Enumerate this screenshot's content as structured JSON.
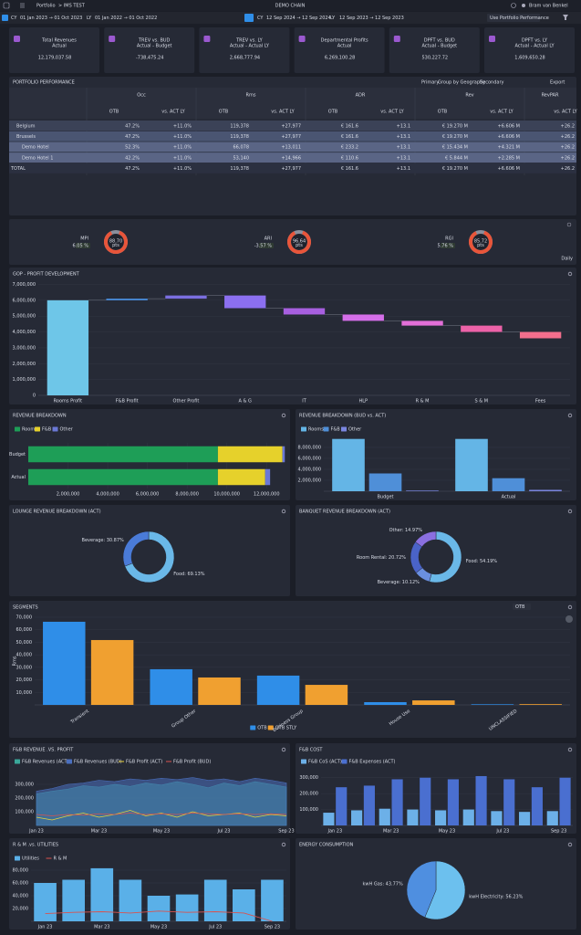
{
  "header": {
    "section": "Portfolio",
    "crumb": "> IMS TEST",
    "org": "DEMO CHAIN",
    "user": "Bram van Benkel"
  },
  "date_bar": {
    "cy": "CY",
    "cy_range": "01 Jan 2023 → 01 Oct 2023",
    "ly": "LY",
    "ly_range": "01 Jan 2022 → 01 Oct 2022",
    "cy2": "CY",
    "cy2_range": "12 Sep 2024 → 12 Sep 2024",
    "ly2": "LY",
    "ly2_range": "12 Sep 2023 → 12 Sep 2023",
    "option": "Use Portfolio Performance"
  },
  "kpis": [
    {
      "title": "Total Revenues",
      "subtitle": "Actual",
      "value": "12,179,037.58",
      "color": "#ffffff"
    },
    {
      "title": "TREV vs. BUD",
      "subtitle": "Actual - Budget",
      "value": "-738,475.24",
      "color": "#ff5a5a"
    },
    {
      "title": "TREV vs. LY",
      "subtitle": "Actual - Actual LY",
      "value": "2,668,777.94",
      "color": "#7ddc5a"
    },
    {
      "title": "Departmental Profits",
      "subtitle": "Actual",
      "value": "6,269,100.28",
      "color": "#ffffff"
    },
    {
      "title": "DPFT vs. BUD",
      "subtitle": "Actual - Budget",
      "value": "530,227.72",
      "color": "#7ddc5a"
    },
    {
      "title": "DPFT vs. LY",
      "subtitle": "Actual - Actual LY",
      "value": "1,609,650.28",
      "color": "#7ddc5a"
    }
  ],
  "table": {
    "title": "PORTFOLIO PERFORMANCE",
    "controls": [
      "Primary",
      "Group by Geography",
      "Secondary",
      "Export"
    ],
    "groups": [
      "Occ",
      "Rms",
      "ADR",
      "Rev",
      "RevPAR"
    ],
    "subheaders": [
      "OTB",
      "vs. ACT LY"
    ],
    "rows": [
      [
        "Belgium",
        "47.2%",
        "+11.0%",
        "119,378",
        "+27,977",
        "€ 161.6",
        "+13.1",
        "€ 19.270 M",
        "+6.606 M",
        "+26.2"
      ],
      [
        "Brussels",
        "47.2%",
        "+11.0%",
        "119,378",
        "+27,977",
        "€ 161.6",
        "+13.1",
        "€ 19.270 M",
        "+6.606 M",
        "+26.2"
      ],
      [
        "Demo Hotel",
        "52.3%",
        "+11.0%",
        "66,078",
        "+13,011",
        "€ 233.2",
        "+13.1",
        "€ 15.434 M",
        "+4.321 M",
        "+26.2"
      ],
      [
        "Demo Hotel 1",
        "42.2%",
        "+11.0%",
        "53,140",
        "+14,966",
        "€ 110.6",
        "+13.1",
        "€ 5.844 M",
        "+2.285 M",
        "+26.2"
      ],
      [
        "TOTAL",
        "47.2%",
        "+11.0%",
        "119,378",
        "+27,977",
        "€ 161.6",
        "+13.1",
        "€ 19.270 M",
        "+6.606 M",
        "+26.2"
      ]
    ]
  },
  "gauges": {
    "period": "Daily",
    "items": [
      {
        "label": "MPI",
        "value": "88.70",
        "unit": "pts",
        "change": "6.05 %"
      },
      {
        "label": "ARI",
        "value": "96.64",
        "unit": "pts",
        "change": "-3.57 %"
      },
      {
        "label": "RGI",
        "value": "85.72",
        "unit": "pts",
        "change": "5.76 %"
      }
    ]
  },
  "chart_data": [
    {
      "type": "waterfall",
      "title": "GOP - PROFIT DEVELOPMENT",
      "categories": [
        "Rooms Profit",
        "F&B Profit",
        "Other Profit",
        "A & G",
        "IT",
        "HLP",
        "R & M",
        "S & M",
        "Fees"
      ],
      "values": [
        6000000,
        100000,
        200000,
        -800000,
        -400000,
        -400000,
        -300000,
        -400000,
        -400000
      ],
      "colors": [
        "#6ec6e8",
        "#4a90e2",
        "#7b6fe0",
        "#8b6ff0",
        "#a75fe0",
        "#d46ee8",
        "#e26fd8",
        "#ec62a8",
        "#f26e8c"
      ],
      "ylim": [
        0,
        7200000
      ],
      "yticks": [
        0,
        {
          "value": 1000000,
          "label": "1,000,000"
        },
        {
          "value": 2000000,
          "label": "2,000,000"
        },
        {
          "value": 3000000,
          "label": "3,000,000"
        },
        {
          "value": 4000000,
          "label": "4,000,000"
        },
        {
          "value": 5000000,
          "label": "5,000,000"
        },
        {
          "value": 6000000,
          "label": "6,000,000"
        },
        {
          "value": 7000000,
          "label": "7,000,000"
        }
      ],
      "grid": true
    },
    {
      "type": "bar",
      "orientation": "horizontal",
      "stacked": true,
      "title": "REVENUE BREAKDOWN",
      "categories": [
        "Budget",
        "Actual"
      ],
      "series": [
        {
          "name": "Room",
          "color": "#1e9e57",
          "values": [
            9550000,
            9550000
          ]
        },
        {
          "name": "F&B",
          "color": "#e6d12b",
          "values": [
            3250000,
            2380000
          ]
        },
        {
          "name": "Other",
          "color": "#6b78d6",
          "values": [
            120000,
            250000
          ]
        }
      ],
      "xlim": [
        0,
        13000000
      ],
      "xticks": [
        {
          "value": 2000000,
          "label": "2,000,000"
        },
        {
          "value": 4000000,
          "label": "4,000,000"
        },
        {
          "value": 6000000,
          "label": "6,000,000"
        },
        {
          "value": 8000000,
          "label": "8,000,000"
        },
        {
          "value": 10000000,
          "label": "10,000,000"
        },
        {
          "value": 12000000,
          "label": "12,000,000"
        }
      ],
      "grid": true
    },
    {
      "type": "bar",
      "title": "REVENUE BREAKDOWN (BUD vs. ACT)",
      "categories": [
        "Budget",
        "Actual"
      ],
      "series": [
        {
          "name": "Rooms",
          "color": "#64b5e6",
          "values": [
            9550000,
            9550000
          ]
        },
        {
          "name": "F&B",
          "color": "#4f8fd8",
          "values": [
            3250000,
            2380000
          ]
        },
        {
          "name": "Other",
          "color": "#7a86e0",
          "values": [
            120000,
            250000
          ]
        }
      ],
      "ylim": [
        0,
        10000000
      ],
      "yticks": [
        {
          "value": 2000000,
          "label": "2,000,000"
        },
        {
          "value": 4000000,
          "label": "4,000,000"
        },
        {
          "value": 6000000,
          "label": "6,000,000"
        },
        {
          "value": 8000000,
          "label": "8,000,000"
        }
      ],
      "grid": true
    },
    {
      "type": "pie",
      "donut": true,
      "title": "LOUNGE REVENUE BREAKDOWN (ACT)",
      "values": [
        69.13,
        30.87
      ],
      "value_labels": [
        "Food: 69.13%",
        "Beverage: 30.87%"
      ],
      "colors": [
        "#6ab8e8",
        "#4a7bd8"
      ]
    },
    {
      "type": "pie",
      "donut": true,
      "title": "BANQUET REVENUE BREAKDOWN (ACT)",
      "values": [
        54.19,
        10.12,
        20.72,
        14.97
      ],
      "value_labels": [
        "Food: 54.19%",
        "Beverage: 10.12%",
        "Room Rental: 20.72%",
        "Other: 14.97%"
      ],
      "colors": [
        "#6ab8e8",
        "#6a8fe0",
        "#4a63c8",
        "#8a6fe0"
      ]
    },
    {
      "type": "bar",
      "title": "SEGMENTS",
      "control": "OTB",
      "ylabel": "Rms",
      "categories": [
        "Transient",
        "Group Other",
        "Business Group",
        "House Use",
        "UNCLASSIFIED"
      ],
      "series": [
        {
          "name": "OTB",
          "color": "#2f8ee8",
          "values": [
            66400,
            28500,
            23400,
            2200,
            500
          ]
        },
        {
          "name": "OTB STLY",
          "color": "#f0a030",
          "values": [
            51800,
            21900,
            16000,
            3600,
            600
          ]
        }
      ],
      "ylim": [
        0,
        70000
      ],
      "yticks": [
        {
          "value": 10000,
          "label": "10,000"
        },
        {
          "value": 20000,
          "label": "20,000"
        },
        {
          "value": 30000,
          "label": "30,000"
        },
        {
          "value": 40000,
          "label": "40,000"
        },
        {
          "value": 50000,
          "label": "50,000"
        },
        {
          "value": 60000,
          "label": "60,000"
        },
        {
          "value": 70000,
          "label": "70,000"
        }
      ],
      "grid": true,
      "legend": "bottom"
    },
    {
      "type": "line",
      "title": "F&B REVENUE .VS. PROFIT",
      "categories": [
        "Jan 23",
        null,
        null,
        null,
        "Mar 23",
        null,
        null,
        null,
        "May 23",
        null,
        null,
        null,
        "Jul 23",
        null,
        null,
        null,
        "Sep 23"
      ],
      "series": [
        {
          "name": "F&B Revenues (ACT)",
          "color": "#3aa89a",
          "area": true,
          "values": [
            230000,
            250000,
            265000,
            290000,
            280000,
            300000,
            285000,
            310000,
            295000,
            320000,
            300000,
            275000,
            310000,
            290000,
            320000,
            300000,
            280000
          ]
        },
        {
          "name": "F&B Revenues (BUD)",
          "color": "#4a6fbf",
          "area": true,
          "values": [
            250000,
            270000,
            300000,
            310000,
            330000,
            320000,
            340000,
            330000,
            345000,
            335000,
            350000,
            330000,
            340000,
            320000,
            345000,
            330000,
            310000
          ]
        },
        {
          "name": "F&B Profit (ACT)",
          "color": "#e8d23a",
          "values": [
            60000,
            40000,
            70000,
            90000,
            60000,
            80000,
            110000,
            70000,
            90000,
            60000,
            100000,
            70000,
            80000,
            90000,
            60000,
            80000,
            70000
          ]
        },
        {
          "name": "F&B Profit (BUD)",
          "color": "#d9534f",
          "values": [
            80000,
            70000,
            80000,
            75000,
            85000,
            80000,
            90000,
            80000,
            85000,
            80000,
            90000,
            85000,
            80000,
            85000,
            80000,
            85000,
            80000
          ]
        }
      ],
      "ylim": [
        0,
        400000
      ],
      "yticks": [
        {
          "value": 100000,
          "label": "100,000"
        },
        {
          "value": 200000,
          "label": "200,000"
        },
        {
          "value": 300000,
          "label": "300,000"
        }
      ],
      "grid": true
    },
    {
      "type": "bar",
      "title": "F&B COST",
      "categories": [
        "Jan 23",
        null,
        "Mar 23",
        null,
        "May 23",
        null,
        "Jul 23",
        null,
        "Sep 23"
      ],
      "series": [
        {
          "name": "F&B CoS (ACT)",
          "color": "#6cb0e8",
          "values": [
            80000,
            95000,
            105000,
            100000,
            95000,
            100000,
            90000,
            85000,
            90000
          ]
        },
        {
          "name": "F&B Expenses (ACT)",
          "color": "#4a6fd0",
          "values": [
            240000,
            250000,
            290000,
            300000,
            290000,
            310000,
            290000,
            240000,
            300000
          ]
        }
      ],
      "ylim": [
        0,
        350000
      ],
      "yticks": [
        {
          "value": 100000,
          "label": "100,000"
        },
        {
          "value": 200000,
          "label": "200,000"
        },
        {
          "value": 300000,
          "label": "300,000"
        }
      ],
      "grid": true
    },
    {
      "type": "bar",
      "title": "R & M .vs. UTILITIES",
      "categories": [
        "Jan 23",
        null,
        "Mar 23",
        null,
        "May 23",
        null,
        "Jul 23",
        null,
        "Sep 23"
      ],
      "series": [
        {
          "name": "Utilities",
          "color": "#5ab0e8",
          "values": [
            60000,
            65000,
            83000,
            65000,
            40000,
            42000,
            65000,
            50000,
            65000
          ]
        },
        {
          "name": "R & M",
          "color": "#d9534f",
          "kind": "line",
          "values": [
            12000,
            14000,
            15000,
            13000,
            16000,
            14000,
            15000,
            13000,
            0
          ]
        }
      ],
      "ylim": [
        0,
        90000
      ],
      "yticks": [
        {
          "value": 20000,
          "label": "20,000"
        },
        {
          "value": 40000,
          "label": "40,000"
        },
        {
          "value": 60000,
          "label": "60,000"
        },
        {
          "value": 80000,
          "label": "80,000"
        }
      ],
      "grid": true
    },
    {
      "type": "pie",
      "title": "ENERGY CONSUMPTION",
      "values": [
        56.23,
        43.77
      ],
      "value_labels": [
        "kwH Electricity: 56.23%",
        "kwH Gas: 43.77%"
      ],
      "colors": [
        "#6cc0ee",
        "#4f8fe0"
      ]
    }
  ]
}
